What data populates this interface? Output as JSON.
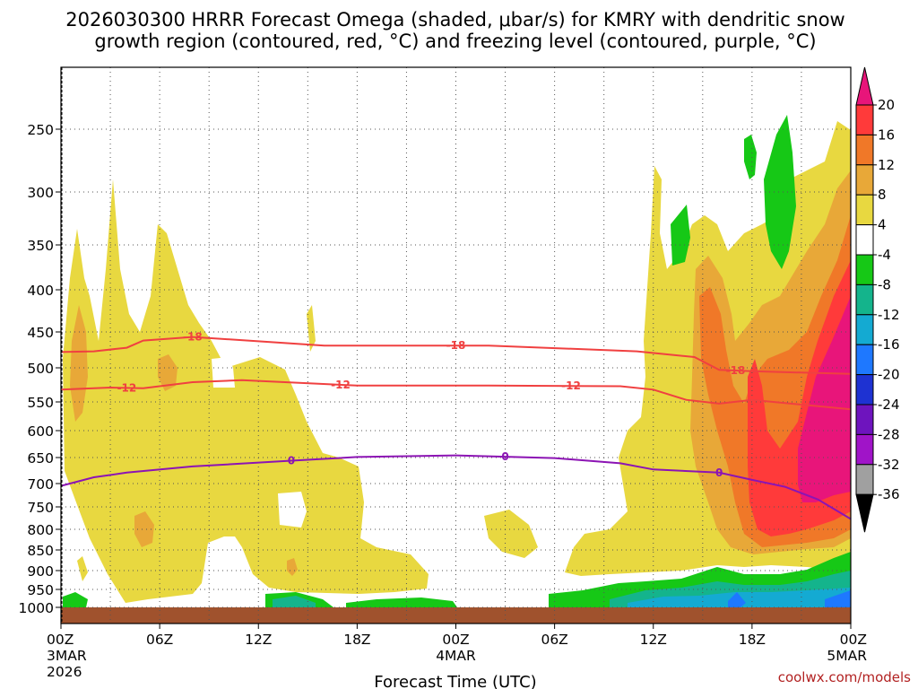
{
  "chart_data": {
    "type": "heatmap",
    "title_line1": "2026030300 HRRR Forecast Omega (shaded, μbar/s) for KMRY with dendritic snow",
    "title_line2": "growth region (contoured, red, °C) and freezing level (contoured, purple, °C)",
    "xlabel": "Forecast Time (UTC)",
    "ylabel": "",
    "watermark": "coolwx.com/models",
    "x_ticks": [
      {
        "h": 0,
        "label": "00Z",
        "sub1": "3MAR",
        "sub2": "2026"
      },
      {
        "h": 6,
        "label": "06Z",
        "sub1": "",
        "sub2": ""
      },
      {
        "h": 12,
        "label": "12Z",
        "sub1": "",
        "sub2": ""
      },
      {
        "h": 18,
        "label": "18Z",
        "sub1": "",
        "sub2": ""
      },
      {
        "h": 24,
        "label": "00Z",
        "sub1": "4MAR",
        "sub2": ""
      },
      {
        "h": 30,
        "label": "06Z",
        "sub1": "",
        "sub2": ""
      },
      {
        "h": 36,
        "label": "12Z",
        "sub1": "",
        "sub2": ""
      },
      {
        "h": 42,
        "label": "18Z",
        "sub1": "",
        "sub2": ""
      },
      {
        "h": 48,
        "label": "00Z",
        "sub1": "5MAR",
        "sub2": ""
      }
    ],
    "x_range_hours": [
      0,
      48
    ],
    "y_range_hpa": [
      1030,
      200
    ],
    "y_ticks": [
      {
        "p": 250,
        "label": "250"
      },
      {
        "p": 300,
        "label": "300"
      },
      {
        "p": 350,
        "label": "350"
      },
      {
        "p": 400,
        "label": "400"
      },
      {
        "p": 450,
        "label": "450"
      },
      {
        "p": 500,
        "label": "500"
      },
      {
        "p": 550,
        "label": "550"
      },
      {
        "p": 600,
        "label": "600"
      },
      {
        "p": 650,
        "label": "650"
      },
      {
        "p": 700,
        "label": "700"
      },
      {
        "p": 750,
        "label": "750"
      },
      {
        "p": 800,
        "label": "800"
      },
      {
        "p": 850,
        "label": "850"
      },
      {
        "p": 900,
        "label": "900"
      },
      {
        "p": 950,
        "label": "950"
      },
      {
        "p": 1000,
        "label": "1000"
      }
    ],
    "colorbar": {
      "labels": [
        "20",
        "16",
        "12",
        "8",
        "4",
        "-4",
        "-8",
        "-12",
        "-16",
        "-20",
        "-24",
        "-28",
        "-32",
        "-36"
      ],
      "colors": [
        "#e8157a",
        "#ff3a3a",
        "#f07828",
        "#e8a838",
        "#e8d840",
        "#ffffff",
        "#16c816",
        "#14b48c",
        "#14aad2",
        "#1e78ff",
        "#1e32d2",
        "#6e14be",
        "#a014c8",
        "#a0a0a0"
      ]
    },
    "contours": [
      {
        "name": "dgz-minus18",
        "label": "-18",
        "color": "#f04040",
        "points": [
          [
            0,
            478
          ],
          [
            2,
            477
          ],
          [
            4,
            472
          ],
          [
            5,
            462
          ],
          [
            8,
            457
          ],
          [
            16,
            469
          ],
          [
            26,
            469
          ],
          [
            35,
            477
          ],
          [
            38.5,
            485
          ],
          [
            40,
            503
          ],
          [
            42,
            505
          ],
          [
            48,
            509
          ]
        ],
        "label_at_h": [
          8,
          24,
          41
        ]
      },
      {
        "name": "dgz-minus12",
        "label": "-12",
        "color": "#f04040",
        "points": [
          [
            0,
            532
          ],
          [
            3,
            529
          ],
          [
            5,
            530
          ],
          [
            8,
            521
          ],
          [
            11,
            518
          ],
          [
            18,
            526
          ],
          [
            26,
            526
          ],
          [
            34,
            527
          ],
          [
            36,
            532
          ],
          [
            38,
            547
          ],
          [
            40,
            553
          ],
          [
            42,
            547
          ],
          [
            48,
            563
          ]
        ],
        "label_at_h": [
          4,
          17,
          31
        ]
      },
      {
        "name": "freezing-level",
        "label": "0",
        "color": "#8c14b4",
        "points": [
          [
            0,
            705
          ],
          [
            2,
            688
          ],
          [
            4,
            679
          ],
          [
            8,
            667
          ],
          [
            14,
            656
          ],
          [
            18,
            649
          ],
          [
            24,
            646
          ],
          [
            30,
            651
          ],
          [
            34,
            661
          ],
          [
            36,
            673
          ],
          [
            40,
            679
          ],
          [
            42,
            693
          ],
          [
            44,
            707
          ],
          [
            46,
            734
          ],
          [
            48,
            777
          ]
        ],
        "label_at_h": [
          14,
          27,
          40
        ]
      }
    ],
    "shaded_regions_omega": [
      {
        "value_band": "4 to 8",
        "color": "#e8d840"
      },
      {
        "value_band": "8 to 12",
        "color": "#e8a838"
      },
      {
        "value_band": "12 to 16",
        "color": "#f07828"
      },
      {
        "value_band": "16 to 20",
        "color": "#ff3a3a"
      },
      {
        "value_band": ">20",
        "color": "#e8157a"
      },
      {
        "value_band": "-4 to -8",
        "color": "#16c816"
      },
      {
        "value_band": "-8 to -12",
        "color": "#14b48c"
      },
      {
        "value_band": "-12 to -16",
        "color": "#14aad2"
      },
      {
        "value_band": "-16 to -20",
        "color": "#1e78ff"
      }
    ]
  }
}
